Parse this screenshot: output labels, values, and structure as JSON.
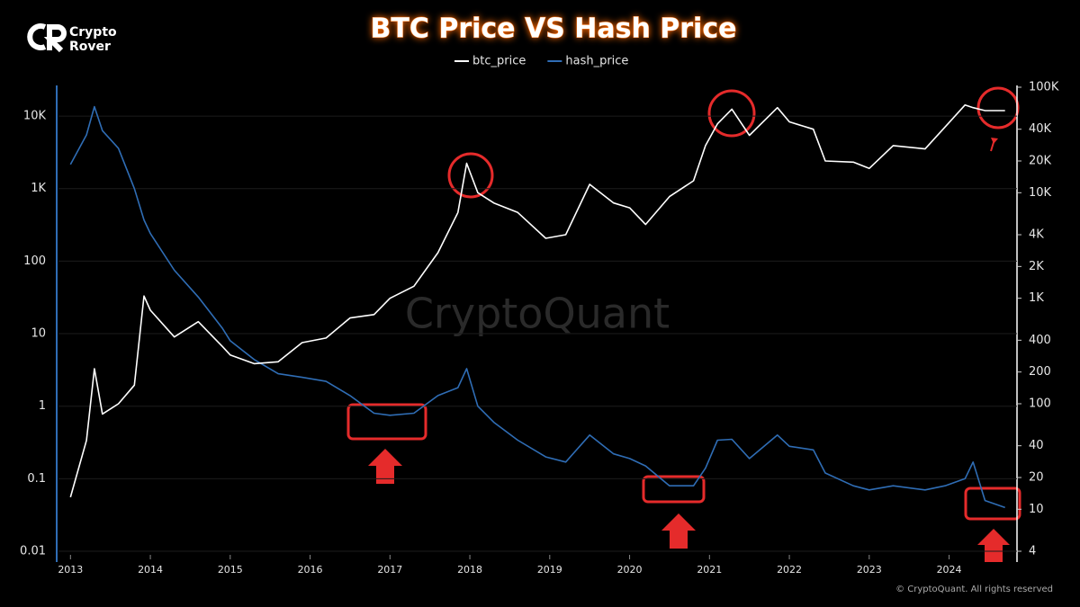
{
  "brand": [
    "Crypto",
    "Rover"
  ],
  "watermark": "CryptoQuant",
  "copyright": "© CryptoQuant. All rights reserved",
  "chart_data": {
    "type": "line",
    "title": "BTC Price VS Hash Price",
    "x": [
      2013.0,
      2013.2,
      2013.3,
      2013.4,
      2013.6,
      2013.8,
      2013.92,
      2014.0,
      2014.3,
      2014.6,
      2014.9,
      2015.0,
      2015.3,
      2015.6,
      2015.9,
      2016.2,
      2016.5,
      2016.8,
      2017.0,
      2017.3,
      2017.6,
      2017.85,
      2017.96,
      2018.1,
      2018.3,
      2018.6,
      2018.95,
      2019.2,
      2019.5,
      2019.8,
      2020.0,
      2020.2,
      2020.5,
      2020.8,
      2020.95,
      2021.1,
      2021.28,
      2021.5,
      2021.85,
      2022.0,
      2022.3,
      2022.45,
      2022.8,
      2023.0,
      2023.3,
      2023.7,
      2023.95,
      2024.2,
      2024.3,
      2024.45,
      2024.7
    ],
    "series": [
      {
        "name": "btc_price",
        "color": "#ffffff",
        "axis": "y2",
        "values": [
          13,
          45,
          215,
          80,
          100,
          150,
          1050,
          770,
          430,
          600,
          350,
          290,
          240,
          250,
          380,
          420,
          650,
          700,
          1000,
          1300,
          2700,
          6500,
          19000,
          10000,
          8000,
          6500,
          3700,
          4000,
          12000,
          8000,
          7200,
          5000,
          9200,
          13000,
          28000,
          45000,
          62000,
          35000,
          64000,
          47000,
          40000,
          20000,
          19500,
          17000,
          28000,
          26000,
          42000,
          68000,
          64000,
          60000,
          60000
        ]
      },
      {
        "name": "hash_price",
        "color": "#2f6db5",
        "values": [
          2150,
          5500,
          13500,
          6300,
          3600,
          1000,
          370,
          240,
          75,
          32,
          12,
          8,
          4.4,
          2.8,
          2.5,
          2.2,
          1.4,
          0.8,
          0.75,
          0.8,
          1.4,
          1.8,
          3.3,
          1.0,
          0.6,
          0.34,
          0.2,
          0.17,
          0.4,
          0.22,
          0.19,
          0.15,
          0.08,
          0.08,
          0.14,
          0.34,
          0.35,
          0.19,
          0.4,
          0.28,
          0.25,
          0.12,
          0.08,
          0.07,
          0.08,
          0.07,
          0.08,
          0.1,
          0.17,
          0.05,
          0.04
        ]
      }
    ],
    "xlim": [
      2012.85,
      2024.85
    ],
    "xticks": [
      2013,
      2014,
      2015,
      2016,
      2017,
      2018,
      2019,
      2020,
      2021,
      2022,
      2023,
      2024
    ],
    "ylim": [
      0.01,
      25000
    ],
    "ylog": true,
    "yticks": [
      0.01,
      0.1,
      1,
      10,
      100,
      {
        "value": 1000,
        "label": "1K"
      },
      {
        "value": 10000,
        "label": "10K"
      }
    ],
    "y2lim": [
      4,
      100000
    ],
    "y2log": true,
    "y2ticks": [
      4,
      10,
      20,
      40,
      100,
      200,
      400,
      {
        "value": 1000,
        "label": "1K"
      },
      {
        "value": 2000,
        "label": "2K"
      },
      {
        "value": 4000,
        "label": "4K"
      },
      {
        "value": 10000,
        "label": "10K"
      },
      {
        "value": 20000,
        "label": "20K"
      },
      {
        "value": 40000,
        "label": "40K"
      },
      {
        "value": 100000,
        "label": "100K"
      }
    ],
    "grid": true,
    "legend": "top"
  }
}
